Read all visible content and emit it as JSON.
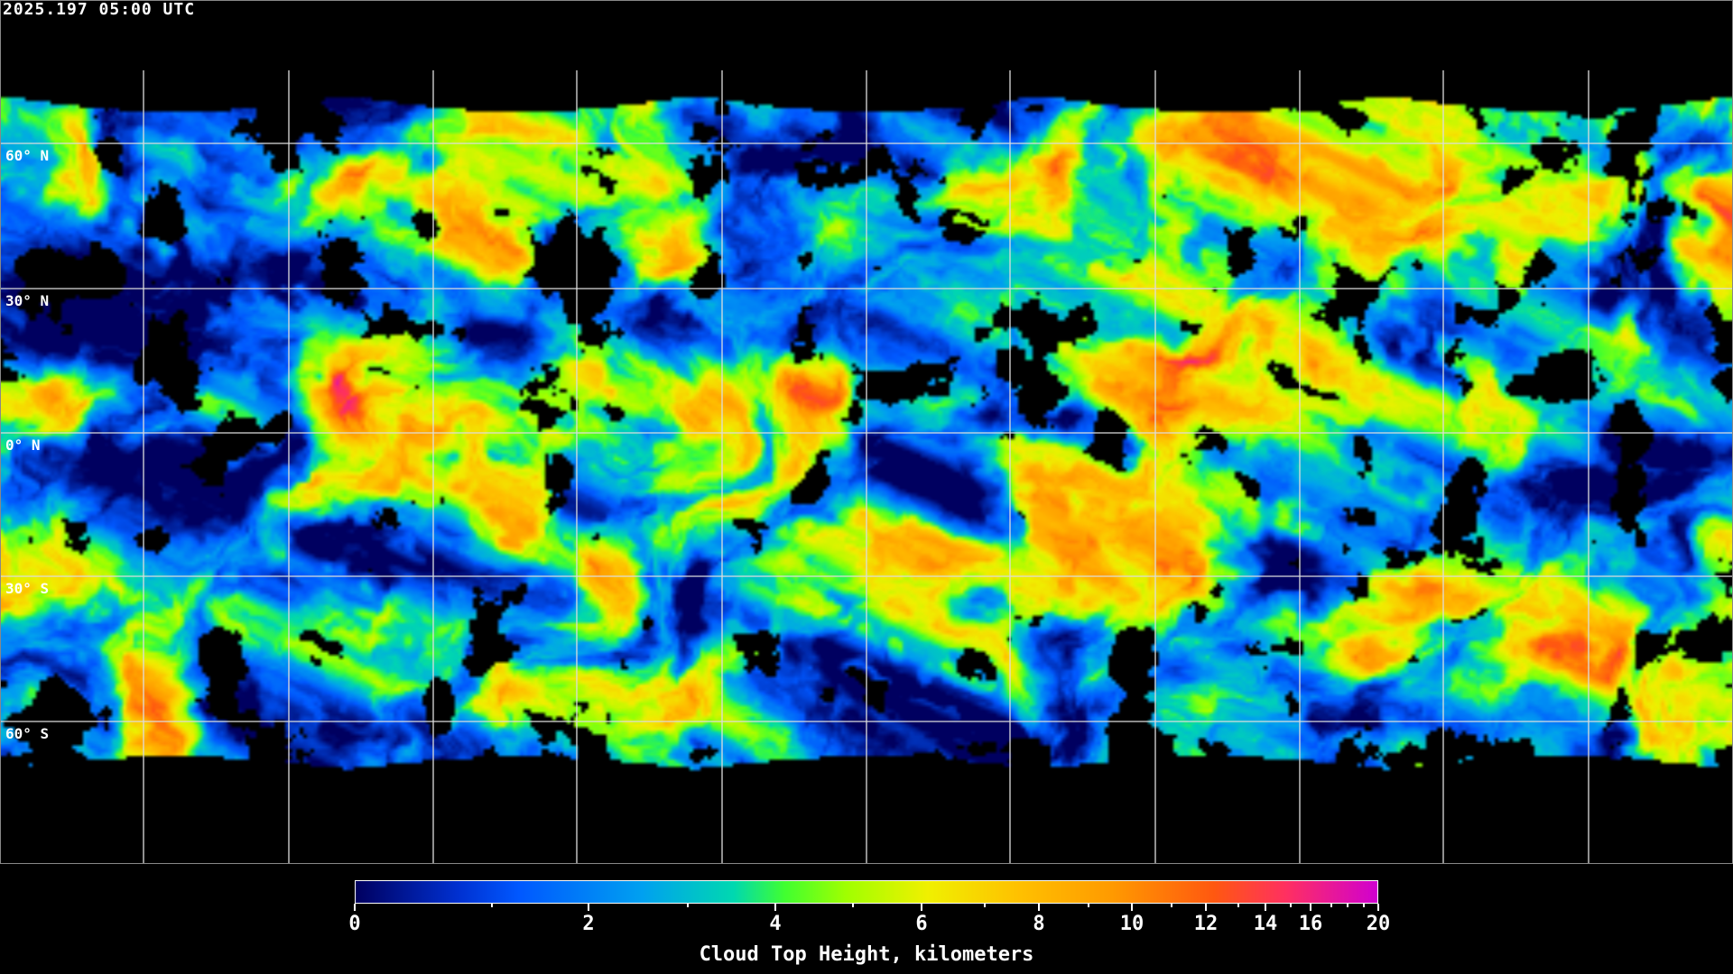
{
  "title": "2025.197 05:00 UTC",
  "latitude_labels": [
    "60° N",
    "30° N",
    "0° N",
    "30° S",
    "60° S"
  ],
  "colorbar": {
    "label": "Cloud Top Height, kilometers",
    "range_km": [
      0,
      20
    ],
    "tick_labels": [
      "0",
      "2",
      "4",
      "6",
      "8",
      "10",
      "12",
      "14",
      "16",
      "20"
    ],
    "minor_ticks": [
      1,
      3,
      5,
      7,
      9,
      11,
      13,
      15,
      17,
      18,
      19
    ],
    "colors": [
      "#000060",
      "#0058ff",
      "#00a0f0",
      "#40ff30",
      "#f0f000",
      "#ffc000",
      "#ff9a00",
      "#ff5810",
      "#ff3060",
      "#d000d0"
    ]
  },
  "map": {
    "projection": "equirectangular global",
    "gridlines": "every 30 degrees",
    "coastlines": "white"
  }
}
